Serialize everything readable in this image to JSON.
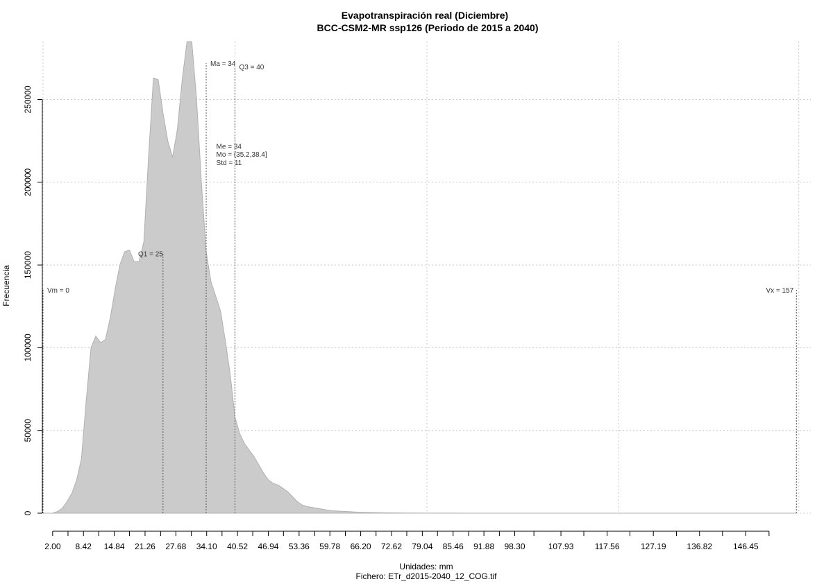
{
  "chart_data": {
    "type": "area",
    "title": "Evapotranspiración real (Diciembre)",
    "subtitle": "BCC-CSM2-MR ssp126 (Periodo de 2015 a 2040)",
    "xlabel": "Unidades: mm",
    "ylabel": "Frecuencia",
    "footer": "Fichero: ETr_d2015-2040_12_COG.tif",
    "xlim": [
      0,
      160
    ],
    "ylim": [
      0,
      285000
    ],
    "y_ticks": [
      0,
      50000,
      100000,
      150000,
      200000,
      250000
    ],
    "y_tick_labels": [
      "0",
      "50000",
      "100000",
      "150000",
      "200000",
      "250000"
    ],
    "x_ticks": [
      2.0,
      8.42,
      14.84,
      21.26,
      27.68,
      34.1,
      40.52,
      46.94,
      53.36,
      59.78,
      66.2,
      72.62,
      79.04,
      85.46,
      91.88,
      98.3,
      107.93,
      117.56,
      127.19,
      136.82,
      146.45
    ],
    "x_tick_labels": [
      "2.00",
      "8.42",
      "14.84",
      "21.26",
      "27.68",
      "34.10",
      "40.52",
      "46.94",
      "53.36",
      "59.78",
      "66.20",
      "72.62",
      "79.04",
      "85.46",
      "91.88",
      "98.30",
      "107.93",
      "117.56",
      "127.19",
      "136.82",
      "146.45"
    ],
    "x_minor_ticks": [
      5.2,
      11.6,
      18.0,
      24.5,
      30.9,
      37.3,
      43.7,
      50.1,
      56.6,
      63.0,
      69.4,
      75.8,
      82.2,
      88.7,
      95.1,
      102.3,
      112.7,
      122.3,
      132.0,
      141.6,
      151.3
    ],
    "grid": true,
    "series": [
      {
        "x": [
          0,
          2,
          3,
          4,
          5,
          6,
          7,
          8,
          9,
          10,
          11,
          12,
          13,
          14,
          15,
          16,
          17,
          18,
          19,
          20,
          21,
          22,
          23,
          24,
          25,
          26,
          27,
          28,
          29,
          30,
          31,
          32,
          33,
          34,
          35,
          36,
          37,
          38,
          39,
          40,
          41,
          42,
          43,
          44,
          45,
          46,
          47,
          48,
          49,
          50,
          51,
          52,
          53,
          54,
          55,
          56,
          57,
          58,
          59,
          60,
          62,
          64,
          66,
          68,
          70,
          72,
          74,
          76,
          78,
          80,
          85,
          90,
          95,
          100,
          110,
          120,
          130,
          140,
          150,
          155,
          157
        ],
        "y": [
          0,
          0,
          1000,
          3000,
          7000,
          12000,
          20000,
          33000,
          68000,
          100000,
          107000,
          103000,
          105000,
          118000,
          135000,
          150000,
          158000,
          159000,
          152000,
          152000,
          164000,
          216000,
          263000,
          262000,
          242000,
          225000,
          215000,
          232000,
          262000,
          285000,
          285000,
          250000,
          200000,
          158000,
          140000,
          131000,
          122000,
          104000,
          84000,
          58000,
          48000,
          42000,
          38000,
          34000,
          29000,
          24000,
          20000,
          18000,
          17000,
          15000,
          13000,
          10000,
          7000,
          5000,
          4000,
          3500,
          3000,
          2500,
          2000,
          1500,
          1200,
          900,
          600,
          400,
          300,
          200,
          150,
          100,
          80,
          50,
          30,
          20,
          10,
          5,
          2,
          1,
          0,
          0,
          0,
          0,
          0
        ]
      }
    ],
    "reference_lines": [
      {
        "label": "Vm = 0",
        "x": 0,
        "y_top": 135000
      },
      {
        "label": "Q1 = 25",
        "x": 25,
        "y_top": 157000
      },
      {
        "label": "Ma = 34",
        "x": 34,
        "y_top": 272000
      },
      {
        "label": "Q3 = 40",
        "x": 40,
        "y_top": 270000
      },
      {
        "label": "Vx = 157",
        "x": 157,
        "y_top": 135000
      }
    ],
    "annotations": [
      {
        "label": "Me = 34",
        "x": 36.1,
        "y": 222000
      },
      {
        "label": "Mo = (35.2,38.4]",
        "x": 36.1,
        "y": 217000
      },
      {
        "label": "Std = 11",
        "x": 36.1,
        "y": 212000
      }
    ],
    "colors": {
      "fill": "#cbcbcb",
      "edge": "#b0b0b0",
      "grid": "#c8c8c8",
      "refline": "#555555",
      "text": "#333333"
    }
  }
}
